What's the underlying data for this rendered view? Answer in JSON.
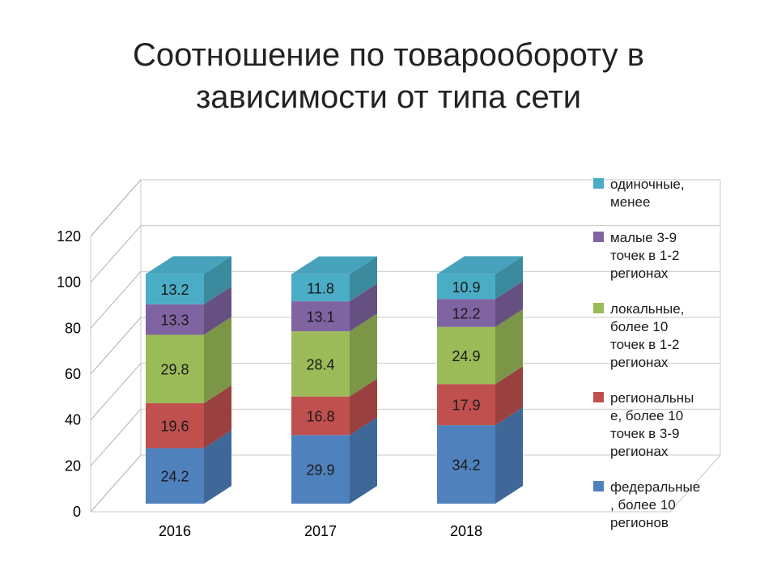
{
  "title_lines": [
    "Соотношение по товарообороту в",
    "зависимости от типа сети"
  ],
  "chart_data": {
    "type": "bar",
    "stacked": true,
    "three_d": true,
    "categories": [
      "2016",
      "2017",
      "2018"
    ],
    "series": [
      {
        "name": "федеральные, более 10 регионов",
        "legend_lines": [
          "федеральные",
          ", более 10",
          "регионов"
        ],
        "color": "#4f81bd",
        "values": [
          24.2,
          29.9,
          34.2
        ],
        "labels": [
          "24.2",
          "29.9",
          "34.2"
        ]
      },
      {
        "name": "региональные, более 10 точек в 3-9 регионах",
        "legend_lines": [
          "региональны",
          "е, более 10",
          "точек в 3-9",
          "регионах"
        ],
        "color": "#c0504d",
        "values": [
          19.6,
          16.8,
          17.9
        ],
        "labels": [
          "19.6",
          "16.8",
          "17.9"
        ]
      },
      {
        "name": "локальные, более 10 точек в 1-2 регионах",
        "legend_lines": [
          "локальные,",
          "более 10",
          "точек в 1-2",
          "регионах"
        ],
        "color": "#9bbb59",
        "values": [
          29.8,
          28.4,
          24.9
        ],
        "labels": [
          "29.8",
          "28.4",
          "24.9"
        ]
      },
      {
        "name": "малые 3-9 точек в 1-2 регионах",
        "legend_lines": [
          "малые 3-9",
          "точек в 1-2",
          "регионах"
        ],
        "color": "#8064a2",
        "values": [
          13.3,
          13.1,
          12.2
        ],
        "labels": [
          "13.3",
          "13.1",
          "12.2"
        ]
      },
      {
        "name": "одиночные, менее",
        "legend_lines": [
          "одиночные,",
          "менее"
        ],
        "color": "#4bacc6",
        "values": [
          13.2,
          11.8,
          10.9
        ],
        "labels": [
          "13.2",
          "11.8",
          "10.9"
        ]
      }
    ],
    "y_ticks": [
      "0",
      "20",
      "40",
      "60",
      "80",
      "100",
      "120"
    ],
    "ylim": [
      0,
      120
    ],
    "grid": true,
    "legend_position": "right"
  }
}
